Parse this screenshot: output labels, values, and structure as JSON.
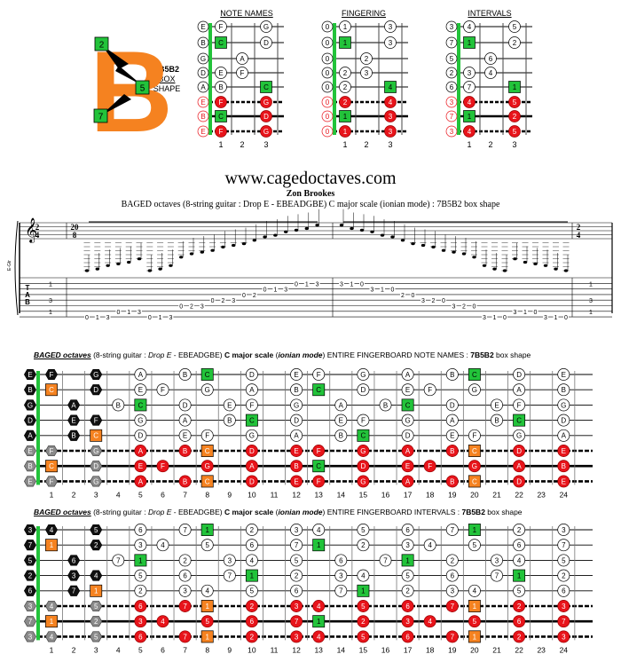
{
  "colors": {
    "orange": "#f58220",
    "green": "#22c33a",
    "red": "#e8141b",
    "black": "#111111",
    "grey": "#8a8a8a",
    "outline": "#555555"
  },
  "box_logo": {
    "letter": "B",
    "fingers": [
      "2",
      "5",
      "7"
    ],
    "label_line1": "7B5B2",
    "label_line2": "BOX",
    "label_line3": "SHAPE"
  },
  "small_diagrams": {
    "titles": [
      "NOTE NAMES",
      "FINGERING",
      "INTERVALS"
    ],
    "fret_numbers": [
      "1",
      "2",
      "3"
    ],
    "note_names": {
      "open": [
        "E",
        "B",
        "G",
        "D",
        "A",
        "E",
        "B",
        "E"
      ],
      "frets": [
        [
          "F",
          "",
          "G"
        ],
        [
          "C",
          "",
          "D"
        ],
        [
          "",
          "A",
          ""
        ],
        [
          "E",
          "F",
          ""
        ],
        [
          "B",
          "",
          "C"
        ],
        [
          "F",
          "",
          "G"
        ],
        [
          "C",
          "",
          "D"
        ],
        [
          "F",
          "",
          "G"
        ]
      ]
    },
    "fingering": {
      "open": [
        "0",
        "0",
        "0",
        "0",
        "0",
        "0",
        "0",
        "0"
      ],
      "frets": [
        [
          "1",
          "",
          "3"
        ],
        [
          "1",
          "",
          "3"
        ],
        [
          "",
          "2",
          ""
        ],
        [
          "2",
          "3",
          ""
        ],
        [
          "2",
          "",
          "4"
        ],
        [
          "2",
          "",
          "4"
        ],
        [
          "1",
          "",
          "3"
        ],
        [
          "1",
          "",
          "3"
        ]
      ]
    },
    "intervals": {
      "open": [
        "3",
        "7",
        "5",
        "2",
        "6",
        "3",
        "7",
        "3"
      ],
      "frets": [
        [
          "4",
          "",
          "5"
        ],
        [
          "1",
          "",
          "2"
        ],
        [
          "",
          "6",
          ""
        ],
        [
          "3",
          "4",
          ""
        ],
        [
          "7",
          "",
          "1"
        ],
        [
          "4",
          "",
          "5"
        ],
        [
          "1",
          "",
          "2"
        ],
        [
          "4",
          "",
          "5"
        ]
      ]
    }
  },
  "header": {
    "url": "www.cagedoctaves.com",
    "author": "Zon Brookes",
    "description": "BAGED octaves (8-string guitar : Drop E - EBEADGBE) C major scale (ionian mode) : 7B5B2 box shape"
  },
  "notation": {
    "time_sig_start": [
      "2",
      "4"
    ],
    "time_sig_mid": [
      "20",
      "8"
    ],
    "time_sig_end": [
      "2",
      "4"
    ],
    "side_label": "E-Gtr",
    "tab_letters": [
      "T",
      "A",
      "B"
    ],
    "start_column": [
      "1",
      "3",
      "1"
    ],
    "end_column": [
      "1",
      "3",
      "1"
    ],
    "tab_numbers": [
      {
        "s": 8,
        "t": "0"
      },
      {
        "s": 8,
        "t": "1"
      },
      {
        "s": 8,
        "t": "3"
      },
      {
        "s": 7,
        "t": "0"
      },
      {
        "s": 7,
        "t": "1"
      },
      {
        "s": 7,
        "t": "3"
      },
      {
        "s": 8,
        "t": "0"
      },
      {
        "s": 8,
        "t": "1"
      },
      {
        "s": 8,
        "t": "3"
      },
      {
        "s": 6,
        "t": "0"
      },
      {
        "s": 6,
        "t": "2"
      },
      {
        "s": 6,
        "t": "3"
      },
      {
        "s": 5,
        "t": "0"
      },
      {
        "s": 5,
        "t": "2"
      },
      {
        "s": 5,
        "t": "3"
      },
      {
        "s": 4,
        "t": "0"
      },
      {
        "s": 4,
        "t": "2"
      },
      {
        "s": 3,
        "t": "0"
      },
      {
        "s": 3,
        "t": "1"
      },
      {
        "s": 3,
        "t": "3"
      },
      {
        "s": 2,
        "t": "0"
      },
      {
        "s": 2,
        "t": "1"
      },
      {
        "s": 2,
        "t": "3"
      },
      {
        "s": 2,
        "t": "3"
      },
      {
        "s": 2,
        "t": "1"
      },
      {
        "s": 2,
        "t": "0"
      },
      {
        "s": 3,
        "t": "3"
      },
      {
        "s": 3,
        "t": "1"
      },
      {
        "s": 3,
        "t": "0"
      },
      {
        "s": 4,
        "t": "2"
      },
      {
        "s": 4,
        "t": "0"
      },
      {
        "s": 5,
        "t": "3"
      },
      {
        "s": 5,
        "t": "2"
      },
      {
        "s": 5,
        "t": "0"
      },
      {
        "s": 6,
        "t": "3"
      },
      {
        "s": 6,
        "t": "2"
      },
      {
        "s": 6,
        "t": "0"
      },
      {
        "s": 8,
        "t": "3"
      },
      {
        "s": 8,
        "t": "1"
      },
      {
        "s": 8,
        "t": "0"
      },
      {
        "s": 7,
        "t": "3"
      },
      {
        "s": 7,
        "t": "1"
      },
      {
        "s": 7,
        "t": "0"
      },
      {
        "s": 8,
        "t": "3"
      },
      {
        "s": 8,
        "t": "1"
      },
      {
        "s": 8,
        "t": "0"
      }
    ]
  },
  "big1": {
    "caption": [
      {
        "t": "BAGED octaves",
        "c": "b i u"
      },
      {
        "t": " (8-string guitar : ",
        "c": ""
      },
      {
        "t": "Drop E",
        "c": "i"
      },
      {
        "t": " - EBEADGBE) ",
        "c": ""
      },
      {
        "t": "C major scale",
        "c": "b"
      },
      {
        "t": " (",
        "c": ""
      },
      {
        "t": "ionian mode",
        "c": "b i"
      },
      {
        "t": ") ENTIRE FINGERBOARD  NOTE NAMES  : ",
        "c": ""
      },
      {
        "t": "7B5B2",
        "c": "b"
      },
      {
        "t": "  box shape",
        "c": ""
      }
    ],
    "strings": [
      {
        "open": "E",
        "notes": {
          "1": "F",
          "3": "G",
          "5": "A",
          "7": "B",
          "8": "C",
          "10": "D",
          "12": "E",
          "13": "F",
          "15": "G",
          "17": "A",
          "19": "B",
          "20": "C",
          "22": "D",
          "24": "E"
        }
      },
      {
        "open": "B",
        "notes": {
          "1": "C",
          "3": "D",
          "5": "E",
          "6": "F",
          "8": "G",
          "10": "A",
          "12": "B",
          "13": "C",
          "15": "D",
          "17": "E",
          "18": "F",
          "20": "G",
          "22": "A",
          "24": "B"
        }
      },
      {
        "open": "G",
        "notes": {
          "2": "A",
          "4": "B",
          "5": "C",
          "7": "D",
          "9": "E",
          "10": "F",
          "12": "G",
          "14": "A",
          "16": "B",
          "17": "C",
          "19": "D",
          "21": "E",
          "22": "F",
          "24": "G"
        }
      },
      {
        "open": "D",
        "notes": {
          "2": "E",
          "3": "F",
          "5": "G",
          "7": "A",
          "9": "B",
          "10": "C",
          "12": "D",
          "14": "E",
          "15": "F",
          "17": "G",
          "19": "A",
          "21": "B",
          "22": "C",
          "24": "D"
        }
      },
      {
        "open": "A",
        "notes": {
          "2": "B",
          "3": "C",
          "5": "D",
          "7": "E",
          "8": "F",
          "10": "G",
          "12": "A",
          "14": "B",
          "15": "C",
          "17": "D",
          "19": "E",
          "20": "F",
          "22": "G",
          "24": "A"
        }
      },
      {
        "open": "E",
        "notes": {
          "1": "F",
          "3": "G",
          "5": "A",
          "7": "B",
          "8": "C",
          "10": "D",
          "12": "E",
          "13": "F",
          "15": "G",
          "17": "A",
          "19": "B",
          "20": "C",
          "22": "D",
          "24": "E"
        }
      },
      {
        "open": "B",
        "notes": {
          "1": "C",
          "3": "D",
          "5": "E",
          "6": "F",
          "8": "G",
          "10": "A",
          "12": "B",
          "13": "C",
          "15": "D",
          "17": "E",
          "18": "F",
          "20": "G",
          "22": "A",
          "24": "B"
        }
      },
      {
        "open": "E",
        "notes": {
          "1": "F",
          "3": "G",
          "5": "A",
          "7": "B",
          "8": "C",
          "10": "D",
          "12": "E",
          "13": "F",
          "15": "G",
          "17": "A",
          "19": "B",
          "20": "C",
          "22": "D",
          "24": "E"
        }
      }
    ]
  },
  "big2": {
    "caption": [
      {
        "t": "BAGED octaves",
        "c": "b i u"
      },
      {
        "t": " (8-string guitar : ",
        "c": ""
      },
      {
        "t": "Drop E",
        "c": "i"
      },
      {
        "t": " - EBEADGBE) ",
        "c": ""
      },
      {
        "t": "C major scale",
        "c": "b"
      },
      {
        "t": " (",
        "c": ""
      },
      {
        "t": "ionian mode",
        "c": "b i"
      },
      {
        "t": ") ENTIRE FINGERBOARD  INTERVALS  : ",
        "c": ""
      },
      {
        "t": "7B5B2",
        "c": "b"
      },
      {
        "t": "  box shape",
        "c": ""
      }
    ],
    "strings": [
      {
        "open": "3",
        "notes": {
          "1": "4",
          "3": "5",
          "5": "6",
          "7": "7",
          "8": "1",
          "10": "2",
          "12": "3",
          "13": "4",
          "15": "5",
          "17": "6",
          "19": "7",
          "20": "1",
          "22": "2",
          "24": "3"
        }
      },
      {
        "open": "7",
        "notes": {
          "1": "1",
          "3": "2",
          "5": "3",
          "6": "4",
          "8": "5",
          "10": "6",
          "12": "7",
          "13": "1",
          "15": "2",
          "17": "3",
          "18": "4",
          "20": "5",
          "22": "6",
          "24": "7"
        }
      },
      {
        "open": "5",
        "notes": {
          "2": "6",
          "4": "7",
          "5": "1",
          "7": "2",
          "9": "3",
          "10": "4",
          "12": "5",
          "14": "6",
          "16": "7",
          "17": "1",
          "19": "2",
          "21": "3",
          "22": "4",
          "24": "5"
        }
      },
      {
        "open": "2",
        "notes": {
          "2": "3",
          "3": "4",
          "5": "5",
          "7": "6",
          "9": "7",
          "10": "1",
          "12": "2",
          "14": "3",
          "15": "4",
          "17": "5",
          "19": "6",
          "21": "7",
          "22": "1",
          "24": "2"
        }
      },
      {
        "open": "6",
        "notes": {
          "2": "7",
          "3": "1",
          "5": "2",
          "7": "3",
          "8": "4",
          "10": "5",
          "12": "6",
          "14": "7",
          "15": "1",
          "17": "2",
          "19": "3",
          "20": "4",
          "22": "5",
          "24": "6"
        }
      },
      {
        "open": "3",
        "notes": {
          "1": "4",
          "3": "5",
          "5": "6",
          "7": "7",
          "8": "1",
          "10": "2",
          "12": "3",
          "13": "4",
          "15": "5",
          "17": "6",
          "19": "7",
          "20": "1",
          "22": "2",
          "24": "3"
        }
      },
      {
        "open": "7",
        "notes": {
          "1": "1",
          "3": "2",
          "5": "3",
          "6": "4",
          "8": "5",
          "10": "6",
          "12": "7",
          "13": "1",
          "15": "2",
          "17": "3",
          "18": "4",
          "20": "5",
          "22": "6",
          "24": "7"
        }
      },
      {
        "open": "3",
        "notes": {
          "1": "4",
          "3": "5",
          "5": "6",
          "7": "7",
          "8": "1",
          "10": "2",
          "12": "3",
          "13": "4",
          "15": "5",
          "17": "6",
          "19": "7",
          "20": "1",
          "22": "2",
          "24": "3"
        }
      }
    ]
  },
  "fret_numbers": [
    "1",
    "2",
    "3",
    "4",
    "5",
    "6",
    "7",
    "8",
    "9",
    "10",
    "11",
    "12",
    "13",
    "14",
    "15",
    "16",
    "17",
    "18",
    "19",
    "20",
    "21",
    "22",
    "23",
    "24"
  ]
}
